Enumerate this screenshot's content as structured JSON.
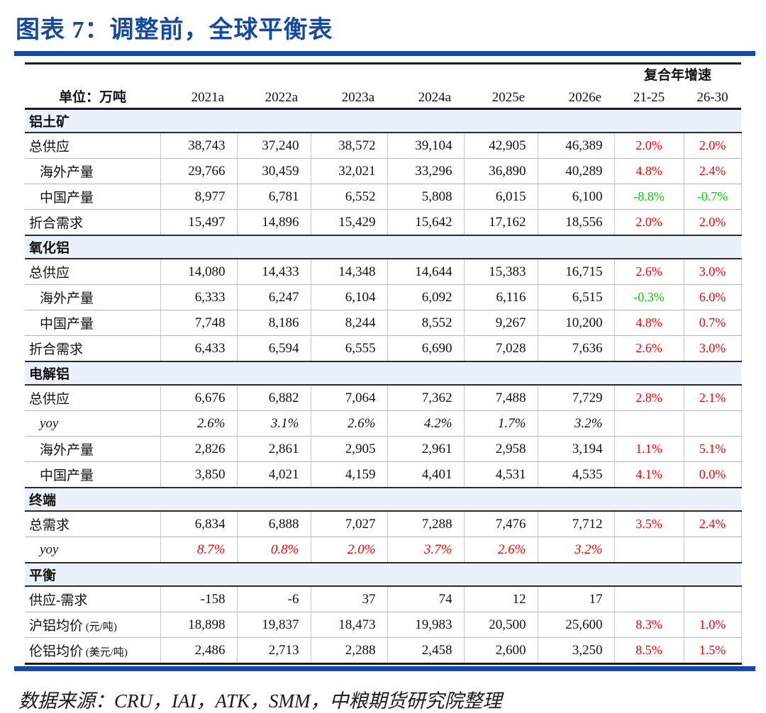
{
  "title": "图表 7：调整前，全球平衡表",
  "footer": "数据来源：CRU，IAI，ATK，SMM，中粮期货研究院整理",
  "colors": {
    "accent_navy": "#164A9E",
    "positive_red": "#FF0000",
    "negative_green": "#00D400",
    "section_bg": "#EAF1FB"
  },
  "table": {
    "unit_label": "单位：万吨",
    "cagr_header": "复合年增速",
    "year_columns": [
      "2021a",
      "2022a",
      "2023a",
      "2024a",
      "2025e",
      "2026e"
    ],
    "cagr_columns": [
      "21-25",
      "26-30"
    ],
    "sections": [
      {
        "name": "铝土矿",
        "rows": [
          {
            "label": "总供应",
            "indent": false,
            "italic": false,
            "values_color": "",
            "values": [
              "38,743",
              "37,240",
              "38,572",
              "39,104",
              "42,905",
              "46,389"
            ],
            "cagr": [
              {
                "text": "2.0%",
                "color": "red"
              },
              {
                "text": "2.0%",
                "color": "red"
              }
            ]
          },
          {
            "label": "海外产量",
            "indent": true,
            "italic": false,
            "values_color": "",
            "values": [
              "29,766",
              "30,459",
              "32,021",
              "33,296",
              "36,890",
              "40,289"
            ],
            "cagr": [
              {
                "text": "4.8%",
                "color": "red"
              },
              {
                "text": "2.4%",
                "color": "red"
              }
            ]
          },
          {
            "label": "中国产量",
            "indent": true,
            "italic": false,
            "values_color": "",
            "values": [
              "8,977",
              "6,781",
              "6,552",
              "5,808",
              "6,015",
              "6,100"
            ],
            "cagr": [
              {
                "text": "-8.8%",
                "color": "green"
              },
              {
                "text": "-0.7%",
                "color": "green"
              }
            ]
          },
          {
            "label": "折合需求",
            "indent": false,
            "italic": false,
            "values_color": "",
            "values": [
              "15,497",
              "14,896",
              "15,429",
              "15,642",
              "17,162",
              "18,556"
            ],
            "cagr": [
              {
                "text": "2.0%",
                "color": "red"
              },
              {
                "text": "2.0%",
                "color": "red"
              }
            ]
          }
        ]
      },
      {
        "name": "氧化铝",
        "rows": [
          {
            "label": "总供应",
            "indent": false,
            "italic": false,
            "values_color": "",
            "values": [
              "14,080",
              "14,433",
              "14,348",
              "14,644",
              "15,383",
              "16,715"
            ],
            "cagr": [
              {
                "text": "2.6%",
                "color": "red"
              },
              {
                "text": "3.0%",
                "color": "red"
              }
            ]
          },
          {
            "label": "海外产量",
            "indent": true,
            "italic": false,
            "values_color": "",
            "values": [
              "6,333",
              "6,247",
              "6,104",
              "6,092",
              "6,116",
              "6,515"
            ],
            "cagr": [
              {
                "text": "-0.3%",
                "color": "green"
              },
              {
                "text": "6.0%",
                "color": "red"
              }
            ]
          },
          {
            "label": "中国产量",
            "indent": true,
            "italic": false,
            "values_color": "",
            "values": [
              "7,748",
              "8,186",
              "8,244",
              "8,552",
              "9,267",
              "10,200"
            ],
            "cagr": [
              {
                "text": "4.8%",
                "color": "red"
              },
              {
                "text": "0.7%",
                "color": "red"
              }
            ]
          },
          {
            "label": "折合需求",
            "indent": false,
            "italic": false,
            "values_color": "",
            "values": [
              "6,433",
              "6,594",
              "6,555",
              "6,690",
              "7,028",
              "7,636"
            ],
            "cagr": [
              {
                "text": "2.6%",
                "color": "red"
              },
              {
                "text": "3.0%",
                "color": "red"
              }
            ]
          }
        ]
      },
      {
        "name": "电解铝",
        "rows": [
          {
            "label": "总供应",
            "indent": false,
            "italic": false,
            "values_color": "",
            "values": [
              "6,676",
              "6,882",
              "7,064",
              "7,362",
              "7,488",
              "7,729"
            ],
            "cagr": [
              {
                "text": "2.8%",
                "color": "red"
              },
              {
                "text": "2.1%",
                "color": "red"
              }
            ]
          },
          {
            "label": "yoy",
            "indent": true,
            "italic": true,
            "values_color": "",
            "values": [
              "2.6%",
              "3.1%",
              "2.6%",
              "4.2%",
              "1.7%",
              "3.2%"
            ],
            "cagr": [
              {
                "text": "",
                "color": ""
              },
              {
                "text": "",
                "color": ""
              }
            ]
          },
          {
            "label": "海外产量",
            "indent": true,
            "italic": false,
            "values_color": "",
            "values": [
              "2,826",
              "2,861",
              "2,905",
              "2,961",
              "2,958",
              "3,194"
            ],
            "cagr": [
              {
                "text": "1.1%",
                "color": "red"
              },
              {
                "text": "5.1%",
                "color": "red"
              }
            ]
          },
          {
            "label": "中国产量",
            "indent": true,
            "italic": false,
            "values_color": "",
            "values": [
              "3,850",
              "4,021",
              "4,159",
              "4,401",
              "4,531",
              "4,535"
            ],
            "cagr": [
              {
                "text": "4.1%",
                "color": "red"
              },
              {
                "text": "0.0%",
                "color": "red"
              }
            ]
          }
        ]
      },
      {
        "name": "终端",
        "rows": [
          {
            "label": "总需求",
            "indent": false,
            "italic": false,
            "values_color": "",
            "values": [
              "6,834",
              "6,888",
              "7,027",
              "7,288",
              "7,476",
              "7,712"
            ],
            "cagr": [
              {
                "text": "3.5%",
                "color": "red"
              },
              {
                "text": "2.4%",
                "color": "red"
              }
            ]
          },
          {
            "label": "yoy",
            "indent": true,
            "italic": true,
            "values_color": "red",
            "values": [
              "8.7%",
              "0.8%",
              "2.0%",
              "3.7%",
              "2.6%",
              "3.2%"
            ],
            "cagr": [
              {
                "text": "",
                "color": ""
              },
              {
                "text": "",
                "color": ""
              }
            ]
          }
        ]
      },
      {
        "name": "平衡",
        "rows": [
          {
            "label": "供应-需求",
            "indent": false,
            "italic": false,
            "values_color": "",
            "values": [
              "-158",
              "-6",
              "37",
              "74",
              "12",
              "17"
            ],
            "cagr": [
              {
                "text": "",
                "color": ""
              },
              {
                "text": "",
                "color": ""
              }
            ]
          },
          {
            "label": "沪铝均价",
            "unit": "(元/吨)",
            "indent": false,
            "italic": false,
            "values_color": "",
            "values": [
              "18,898",
              "19,837",
              "18,473",
              "19,983",
              "20,500",
              "25,600"
            ],
            "cagr": [
              {
                "text": "8.3%",
                "color": "red"
              },
              {
                "text": "1.0%",
                "color": "red"
              }
            ]
          },
          {
            "label": "伦铝均价",
            "unit": "(美元/吨)",
            "indent": false,
            "italic": false,
            "values_color": "",
            "values": [
              "2,486",
              "2,713",
              "2,288",
              "2,458",
              "2,600",
              "3,250"
            ],
            "cagr": [
              {
                "text": "8.5%",
                "color": "red"
              },
              {
                "text": "1.5%",
                "color": "red"
              }
            ]
          }
        ]
      }
    ]
  }
}
